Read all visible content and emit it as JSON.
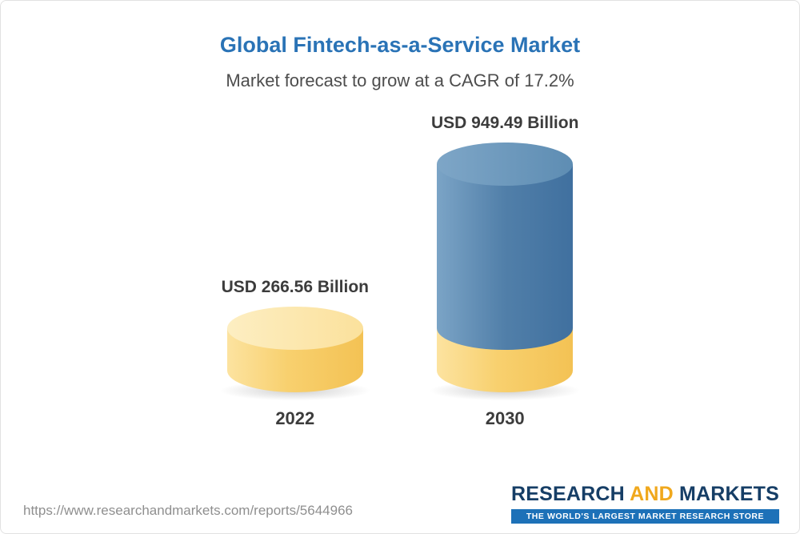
{
  "header": {
    "title": "Global Fintech-as-a-Service Market",
    "subtitle": "Market forecast to grow at a CAGR of 17.2%"
  },
  "chart_data": {
    "type": "bar",
    "variant": "3d-cylinder",
    "title": "Global Fintech-as-a-Service Market",
    "subtitle": "Market forecast to grow at a CAGR of 17.2%",
    "cagr_percent": 17.2,
    "unit": "USD Billion",
    "categories": [
      "2022",
      "2030"
    ],
    "values": [
      266.56,
      949.49
    ],
    "value_labels": [
      "USD 266.56 Billion",
      "USD 949.49 Billion"
    ],
    "bar_colors": [
      "#f7cf6a",
      "#4c80ab"
    ],
    "bar_2030_base_color": "#f7cf6a",
    "legend": false,
    "gridlines": false,
    "axes_visible": false
  },
  "colors": {
    "title_blue": "#2a73b6",
    "bar_yellow": "#f7cf6a",
    "bar_blue": "#4c80ab",
    "logo_navy": "#163e66",
    "logo_yellow": "#f0a81d",
    "tagline_bg": "#1d71b8"
  },
  "footer": {
    "url": "https://www.researchandmarkets.com/reports/5644966",
    "logo": {
      "word1": "RESEARCH",
      "word2": "AND",
      "word3": "MARKETS",
      "tagline": "THE WORLD'S LARGEST MARKET RESEARCH STORE"
    }
  }
}
